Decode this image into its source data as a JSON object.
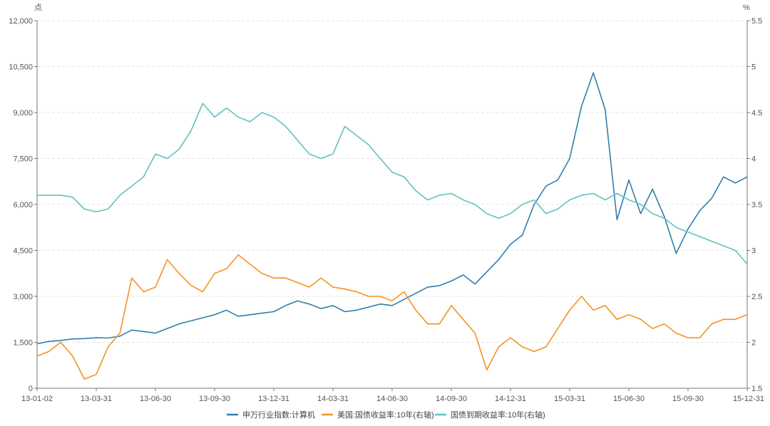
{
  "chart_data": {
    "type": "line",
    "x_ticks": [
      "13-01-02",
      "13-03-31",
      "13-06-30",
      "13-09-30",
      "13-12-31",
      "14-03-31",
      "14-06-30",
      "14-09-30",
      "14-12-31",
      "15-03-31",
      "15-06-30",
      "15-09-30",
      "15-12-31"
    ],
    "y_left": {
      "unit": "点",
      "ticks": [
        "12,000",
        "10,500",
        "9,000",
        "7,500",
        "6,000",
        "4,500",
        "3,000",
        "1,500",
        "0"
      ],
      "range": [
        0,
        12000
      ]
    },
    "y_right": {
      "unit": "%",
      "ticks": [
        "5.5",
        "5",
        "4.5",
        "4",
        "3.5",
        "3",
        "2.5",
        "2",
        "1.5"
      ],
      "range": [
        1.5,
        5.5
      ]
    },
    "grid": true,
    "legend_position": "bottom",
    "series": [
      {
        "name": "申万行业指数:计算机",
        "axis": "left",
        "color": "#2f7fad",
        "values": [
          1450,
          1530,
          1560,
          1610,
          1620,
          1650,
          1640,
          1700,
          1900,
          1850,
          1800,
          1950,
          2100,
          2200,
          2300,
          2400,
          2550,
          2350,
          2400,
          2450,
          2500,
          2700,
          2850,
          2750,
          2600,
          2700,
          2500,
          2550,
          2650,
          2750,
          2700,
          2900,
          3100,
          3300,
          3350,
          3500,
          3700,
          3400,
          3800,
          4200,
          4700,
          5000,
          6000,
          6600,
          6800,
          7500,
          9200,
          10300,
          9100,
          5500,
          6800,
          5700,
          6500,
          5600,
          4400,
          5200,
          5800,
          6200,
          6900,
          6700,
          6900
        ]
      },
      {
        "name": "美国:国债收益率:10年(右轴)",
        "axis": "right",
        "color": "#f39423",
        "values": [
          1.85,
          1.9,
          2.0,
          1.85,
          1.6,
          1.65,
          1.95,
          2.1,
          2.7,
          2.55,
          2.6,
          2.9,
          2.75,
          2.62,
          2.55,
          2.75,
          2.8,
          2.95,
          2.85,
          2.75,
          2.7,
          2.7,
          2.65,
          2.6,
          2.7,
          2.6,
          2.58,
          2.55,
          2.5,
          2.5,
          2.45,
          2.55,
          2.35,
          2.2,
          2.2,
          2.4,
          2.25,
          2.1,
          1.7,
          1.95,
          2.05,
          1.95,
          1.9,
          1.95,
          2.15,
          2.35,
          2.5,
          2.35,
          2.4,
          2.25,
          2.3,
          2.25,
          2.15,
          2.2,
          2.1,
          2.05,
          2.05,
          2.2,
          2.25,
          2.25,
          2.3
        ]
      },
      {
        "name": "国债到期收益率:10年(右轴)",
        "axis": "right",
        "color": "#61c2bd",
        "values": [
          3.6,
          3.6,
          3.6,
          3.58,
          3.45,
          3.42,
          3.45,
          3.6,
          3.7,
          3.8,
          4.05,
          4.0,
          4.1,
          4.3,
          4.6,
          4.45,
          4.55,
          4.45,
          4.4,
          4.5,
          4.45,
          4.35,
          4.2,
          4.05,
          4.0,
          4.05,
          4.35,
          4.25,
          4.15,
          4.0,
          3.85,
          3.8,
          3.65,
          3.55,
          3.6,
          3.62,
          3.55,
          3.5,
          3.4,
          3.35,
          3.4,
          3.5,
          3.55,
          3.4,
          3.45,
          3.55,
          3.6,
          3.62,
          3.55,
          3.62,
          3.55,
          3.5,
          3.4,
          3.35,
          3.25,
          3.2,
          3.15,
          3.1,
          3.05,
          3.0,
          2.85
        ]
      }
    ]
  }
}
